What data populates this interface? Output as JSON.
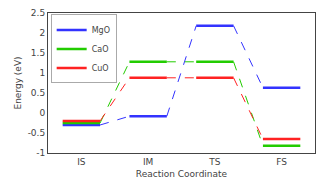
{
  "chart_data": {
    "type": "line",
    "xlabel": "Reaction Coordinate",
    "ylabel": "Energy (eV)",
    "categories": [
      "IS",
      "IM",
      "TS",
      "FS"
    ],
    "series": [
      {
        "name": "MgO",
        "color": "#3333ff",
        "values": [
          -0.3,
          -0.08,
          2.18,
          0.63
        ]
      },
      {
        "name": "CaO",
        "color": "#22cc00",
        "values": [
          -0.25,
          1.28,
          1.28,
          -0.82
        ]
      },
      {
        "name": "CuO",
        "color": "#ff2222",
        "values": [
          -0.2,
          0.88,
          0.88,
          -0.65
        ]
      }
    ],
    "ylim": [
      -1.0,
      2.5
    ],
    "yticks": [
      -1,
      -0.5,
      0,
      0.5,
      1,
      1.5,
      2,
      2.5
    ],
    "grid": false,
    "legend": "upper left"
  }
}
